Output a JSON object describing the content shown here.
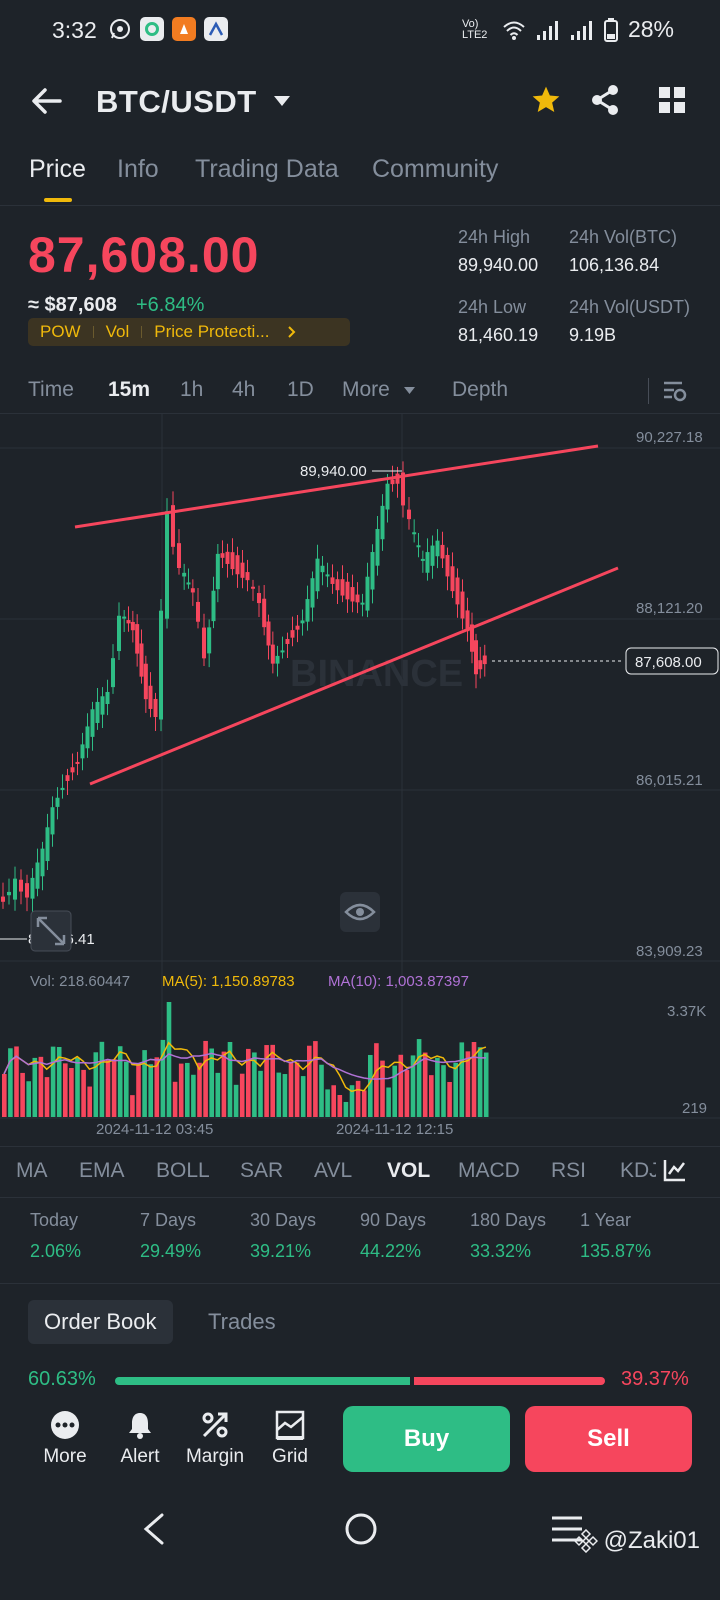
{
  "status_bar": {
    "time": "3:32",
    "net": "Vo) LTE2",
    "battery": "28%"
  },
  "header": {
    "pair": "BTC/USDT"
  },
  "tabs": [
    {
      "label": "Price"
    },
    {
      "label": "Info"
    },
    {
      "label": "Trading Data"
    },
    {
      "label": "Community"
    }
  ],
  "price": {
    "last": "87,608.00",
    "usd": "≈ $87,608",
    "change": "+6.84%"
  },
  "tags": [
    "POW",
    "Vol",
    "Price Protecti..."
  ],
  "stats": {
    "high_label": "24h High",
    "high": "89,940.00",
    "low_label": "24h Low",
    "low": "81,460.19",
    "vol_btc_label": "24h Vol(BTC)",
    "vol_btc": "106,136.84",
    "vol_usdt_label": "24h Vol(USDT)",
    "vol_usdt": "9.19B"
  },
  "intervals": {
    "time": "Time",
    "m15": "15m",
    "h1": "1h",
    "h4": "4h",
    "d1": "1D",
    "more": "More",
    "depth": "Depth"
  },
  "chart": {
    "y_labels": [
      "90,227.18",
      "88,121.20",
      "86,015.21",
      "83,909.23"
    ],
    "high_marker": "89,940.00",
    "low_marker": "84,196.41",
    "current_price": "87,608.00",
    "watermark": "BINANCE",
    "vol_text": "Vol: 218.60447",
    "ma5_text": "MA(5): 1,150.89783",
    "ma10_text": "MA(10): 1,003.87397",
    "vol_labels": [
      "3.37K",
      "219"
    ],
    "time_labels": [
      "2024-11-12 03:45",
      "2024-11-12 12:15"
    ],
    "colors": {
      "up": "#2ebd85",
      "down": "#f6465d",
      "ma5": "#f0b90b",
      "ma10": "#b072d6"
    }
  },
  "indicators": [
    "MA",
    "EMA",
    "BOLL",
    "SAR",
    "AVL",
    "VOL",
    "MACD",
    "RSI",
    "KDJ"
  ],
  "performance": [
    {
      "label": "Today",
      "value": "2.06%"
    },
    {
      "label": "7 Days",
      "value": "29.49%"
    },
    {
      "label": "30 Days",
      "value": "39.21%"
    },
    {
      "label": "90 Days",
      "value": "44.22%"
    },
    {
      "label": "180 Days",
      "value": "33.32%"
    },
    {
      "label": "1 Year",
      "value": "135.87%"
    }
  ],
  "orderbook": {
    "tab1": "Order Book",
    "tab2": "Trades",
    "buy_pct": "60.63%",
    "sell_pct": "39.37%",
    "buy_ratio": 0.6063
  },
  "bottom": {
    "more": "More",
    "alert": "Alert",
    "margin": "Margin",
    "grid": "Grid",
    "buy": "Buy",
    "sell": "Sell"
  },
  "watermark_user": "@Zaki01"
}
